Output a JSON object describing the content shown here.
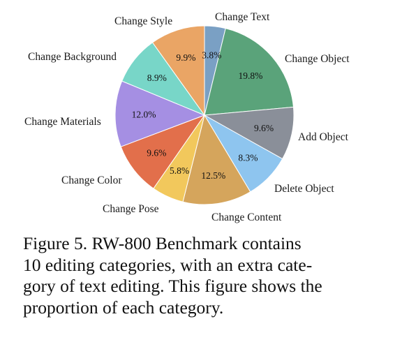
{
  "chart_data": {
    "type": "pie",
    "title": "",
    "start_angle_deg": 90,
    "direction": "clockwise",
    "slices": [
      {
        "label": "Change Text",
        "value": 3.8,
        "pct_label": "3.8%",
        "color": "#7aa0c4"
      },
      {
        "label": "Change Object",
        "value": 19.8,
        "pct_label": "19.8%",
        "color": "#5aa37a"
      },
      {
        "label": "Add Object",
        "value": 9.6,
        "pct_label": "9.6%",
        "color": "#8a8f99"
      },
      {
        "label": "Delete Object",
        "value": 8.3,
        "pct_label": "8.3%",
        "color": "#8ec5ef"
      },
      {
        "label": "Change Content",
        "value": 12.5,
        "pct_label": "12.5%",
        "color": "#d5a55c"
      },
      {
        "label": "Change Pose",
        "value": 5.8,
        "pct_label": "5.8%",
        "color": "#f2c85c"
      },
      {
        "label": "Change Color",
        "value": 9.6,
        "pct_label": "9.6%",
        "color": "#e26f4b"
      },
      {
        "label": "Change Materials",
        "value": 12.0,
        "pct_label": "12.0%",
        "color": "#a58fe3"
      },
      {
        "label": "Change Background",
        "value": 8.9,
        "pct_label": "8.9%",
        "color": "#78d6c8"
      },
      {
        "label": "Change Style",
        "value": 9.9,
        "pct_label": "9.9%",
        "color": "#eaa565"
      }
    ]
  },
  "caption": {
    "lines": [
      "Figure 5.  RW-800 Benchmark contains",
      "10 editing categories, with an extra cate-",
      "gory of text editing. This figure shows the",
      "proportion of each category."
    ]
  }
}
